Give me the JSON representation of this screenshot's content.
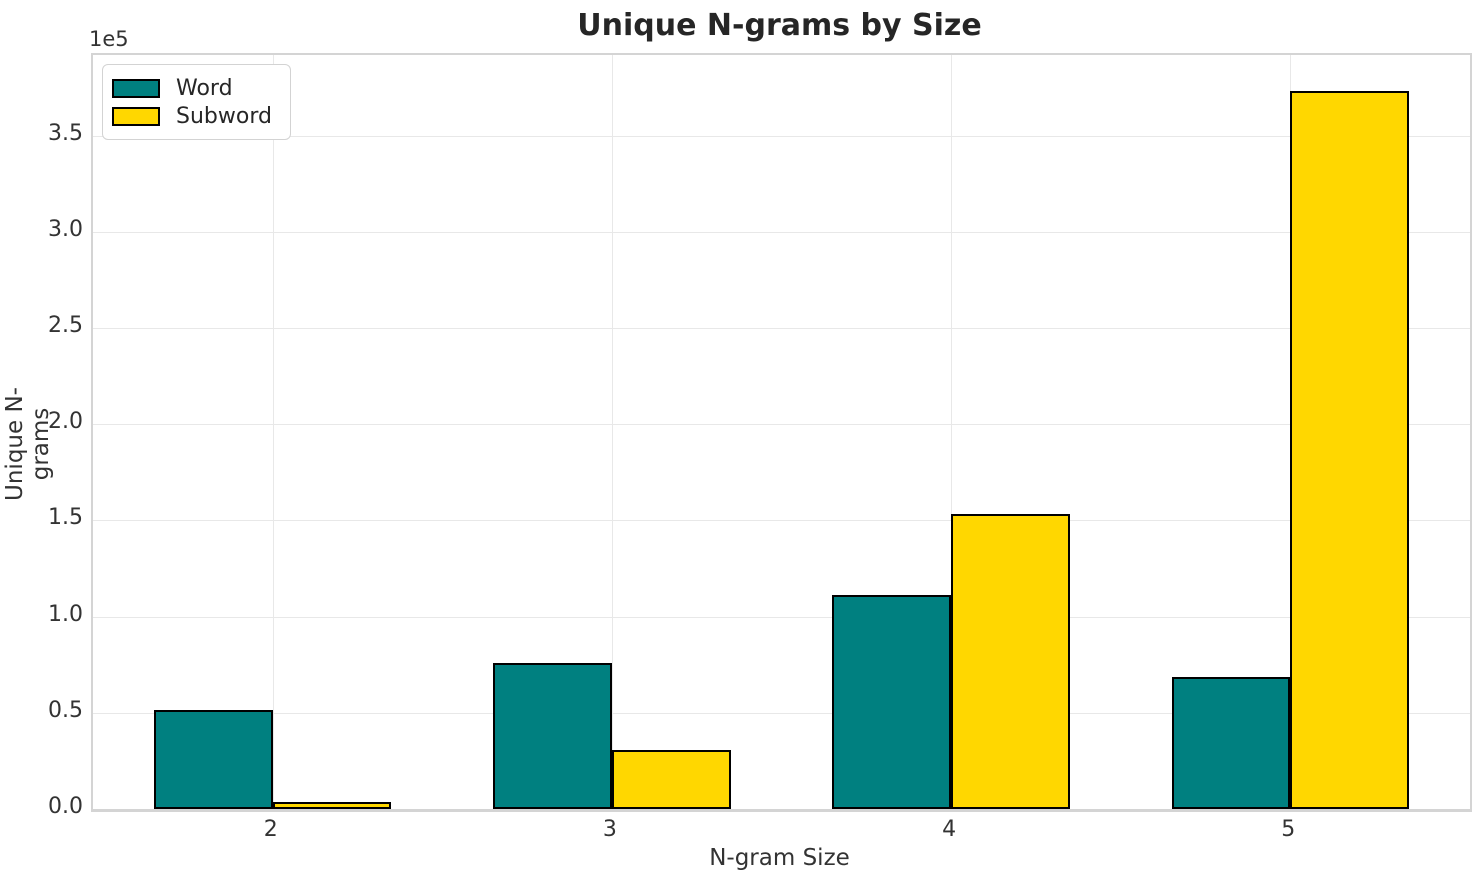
{
  "chart_data": {
    "type": "bar",
    "title": "Unique N-grams by Size",
    "xlabel": "N-gram Size",
    "ylabel": "Unique N-grams",
    "offset_text": "1e5",
    "categories": [
      "2",
      "3",
      "4",
      "5"
    ],
    "x_tick_values": [
      2,
      3,
      4,
      5
    ],
    "series": [
      {
        "name": "Word",
        "color": "#008080",
        "values": [
          51300,
          76000,
          111500,
          68600
        ]
      },
      {
        "name": "Subword",
        "color": "#FFD700",
        "values": [
          3700,
          30500,
          153400,
          373400
        ]
      }
    ],
    "bar_width_data_units": 0.35,
    "bar_edge_color": "#000000",
    "xlim": [
      1.47,
      5.53
    ],
    "ylim": [
      0,
      392000
    ],
    "ytick_values": [
      0,
      50000,
      100000,
      150000,
      200000,
      250000,
      300000,
      350000
    ],
    "ytick_labels": [
      "0.0",
      "0.5",
      "1.0",
      "1.5",
      "2.0",
      "2.5",
      "3.0",
      "3.5"
    ],
    "grid": true,
    "legend_position": "upper left"
  }
}
